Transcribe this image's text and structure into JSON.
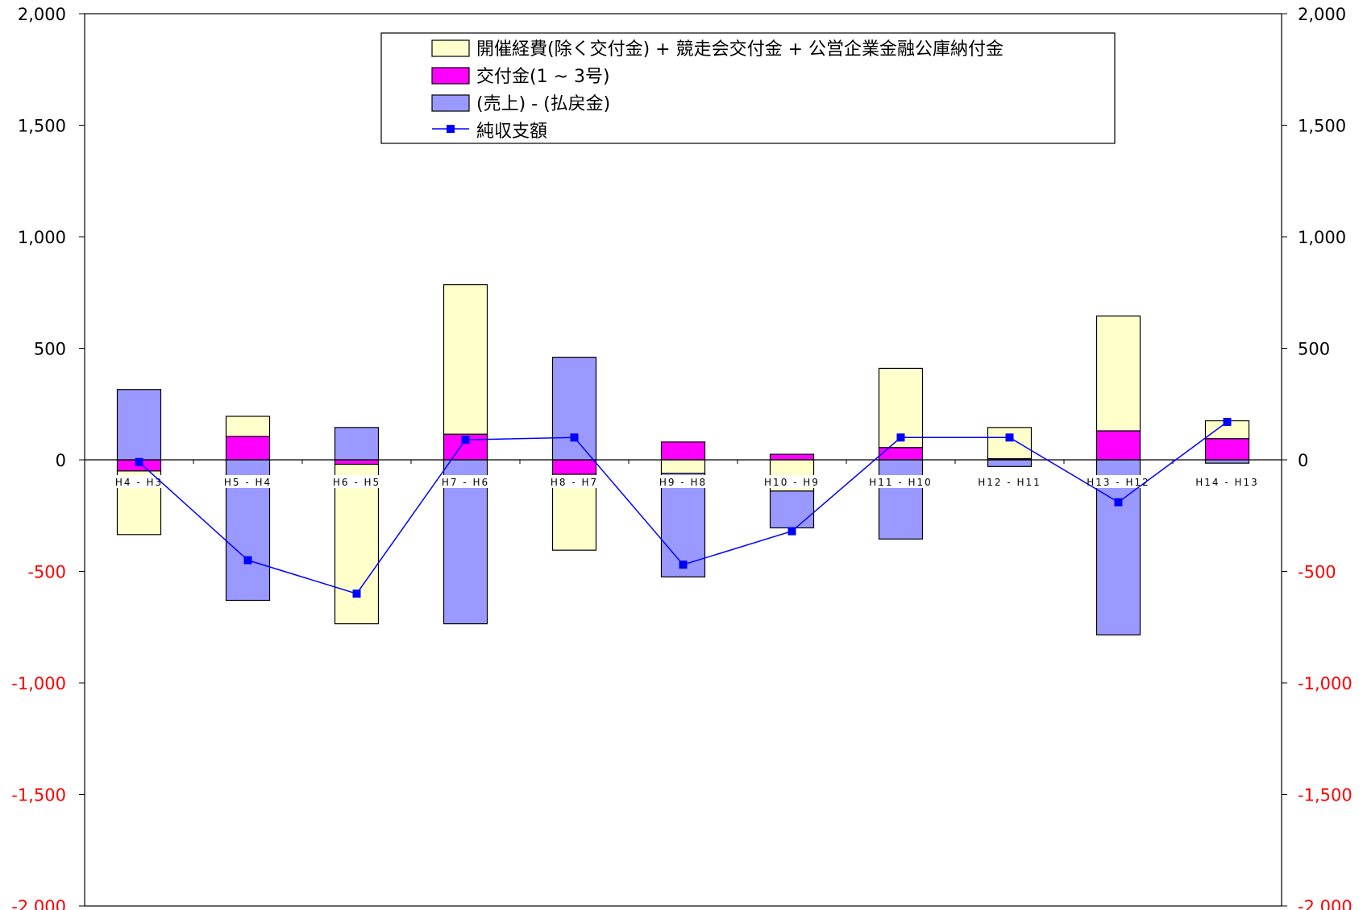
{
  "chart_data": {
    "type": "bar",
    "stacked": true,
    "categories": [
      "H4 - H3",
      "H5 - H4",
      "H6 - H5",
      "H7 - H6",
      "H8 - H7",
      "H9 - H8",
      "H10 - H9",
      "H11 - H10",
      "H12 - H11",
      "H13 - H12",
      "H14 - H13"
    ],
    "series": [
      {
        "name": "開催経費(除く交付金) + 競走会交付金 + 公営企業金融公庫納付金",
        "kind": "bar",
        "color": "#ffffcc",
        "values": [
          -285,
          90,
          -715,
          670,
          -340,
          -60,
          -140,
          355,
          140,
          515,
          80
        ]
      },
      {
        "name": "交付金(1 ~ 3号)",
        "kind": "bar",
        "color": "#ff00ff",
        "values": [
          -50,
          105,
          -20,
          115,
          -65,
          80,
          25,
          55,
          5,
          130,
          95
        ]
      },
      {
        "name": "(売上) - (払戻金)",
        "kind": "bar",
        "color": "#9999ff",
        "values": [
          315,
          -630,
          145,
          -735,
          460,
          -465,
          -165,
          -355,
          -30,
          -785,
          -15
        ]
      },
      {
        "name": "純収支額",
        "kind": "line",
        "color": "#0000ff",
        "values": [
          -10,
          -450,
          -600,
          90,
          100,
          -470,
          -320,
          100,
          100,
          -190,
          170
        ]
      }
    ],
    "ylim": [
      -2000,
      2000
    ],
    "yticks": [
      {
        "value": 2000,
        "label": "2,000"
      },
      {
        "value": 1500,
        "label": "1,500"
      },
      {
        "value": 1000,
        "label": "1,000"
      },
      {
        "value": 500,
        "label": "500"
      },
      {
        "value": 0,
        "label": "0"
      },
      {
        "value": -500,
        "label": "-500"
      },
      {
        "value": -1000,
        "label": "-1,000"
      },
      {
        "value": -1500,
        "label": "-1,500"
      },
      {
        "value": -2000,
        "label": "-2,000"
      }
    ],
    "negative_tick_color": "#ff0000",
    "positive_tick_color": "#000000",
    "legend_position": "top-center",
    "grid": false,
    "secondary_y_axis": true
  }
}
